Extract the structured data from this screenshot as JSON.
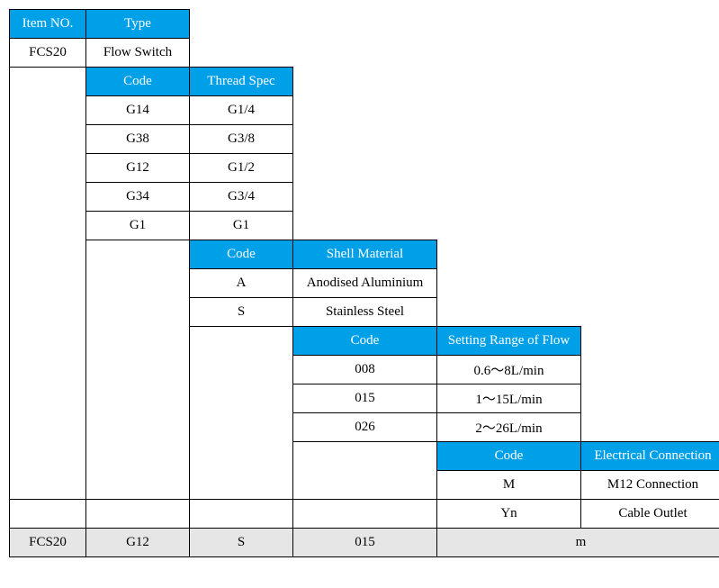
{
  "colors": {
    "header_bg": "#00a0e9",
    "header_fg": "#ffffff",
    "summary_bg": "#e6e6e6",
    "border": "#000000"
  },
  "headers": {
    "item_no": "Item NO.",
    "type": "Type",
    "code_thread": "Code",
    "thread_spec": "Thread Spec",
    "code_shell": "Code",
    "shell_material": "Shell Material",
    "code_flow": "Code",
    "flow_range": "Setting Range of Flow",
    "code_elec": "Code",
    "elec_conn": "Electrical Connection"
  },
  "item": {
    "no": "FCS20",
    "type": "Flow Switch"
  },
  "thread": [
    {
      "code": "G14",
      "spec": "G1/4"
    },
    {
      "code": "G38",
      "spec": "G3/8"
    },
    {
      "code": "G12",
      "spec": "G1/2"
    },
    {
      "code": "G34",
      "spec": "G3/4"
    },
    {
      "code": "G1",
      "spec": "G1"
    }
  ],
  "shell": [
    {
      "code": "A",
      "material": "Anodised Aluminium"
    },
    {
      "code": "S",
      "material": "Stainless Steel"
    }
  ],
  "flow": [
    {
      "code": "008",
      "range": "0.6～8L/min"
    },
    {
      "code": "015",
      "range": "1～15L/min"
    },
    {
      "code": "026",
      "range": "2～26L/min"
    }
  ],
  "elec": [
    {
      "code": "M",
      "conn": "M12 Connection"
    },
    {
      "code": "Yn",
      "conn": "Cable Outlet"
    }
  ],
  "summary": {
    "item_no": "FCS20",
    "thread": "G12",
    "shell": "S",
    "flow": "015",
    "elec": "m"
  }
}
